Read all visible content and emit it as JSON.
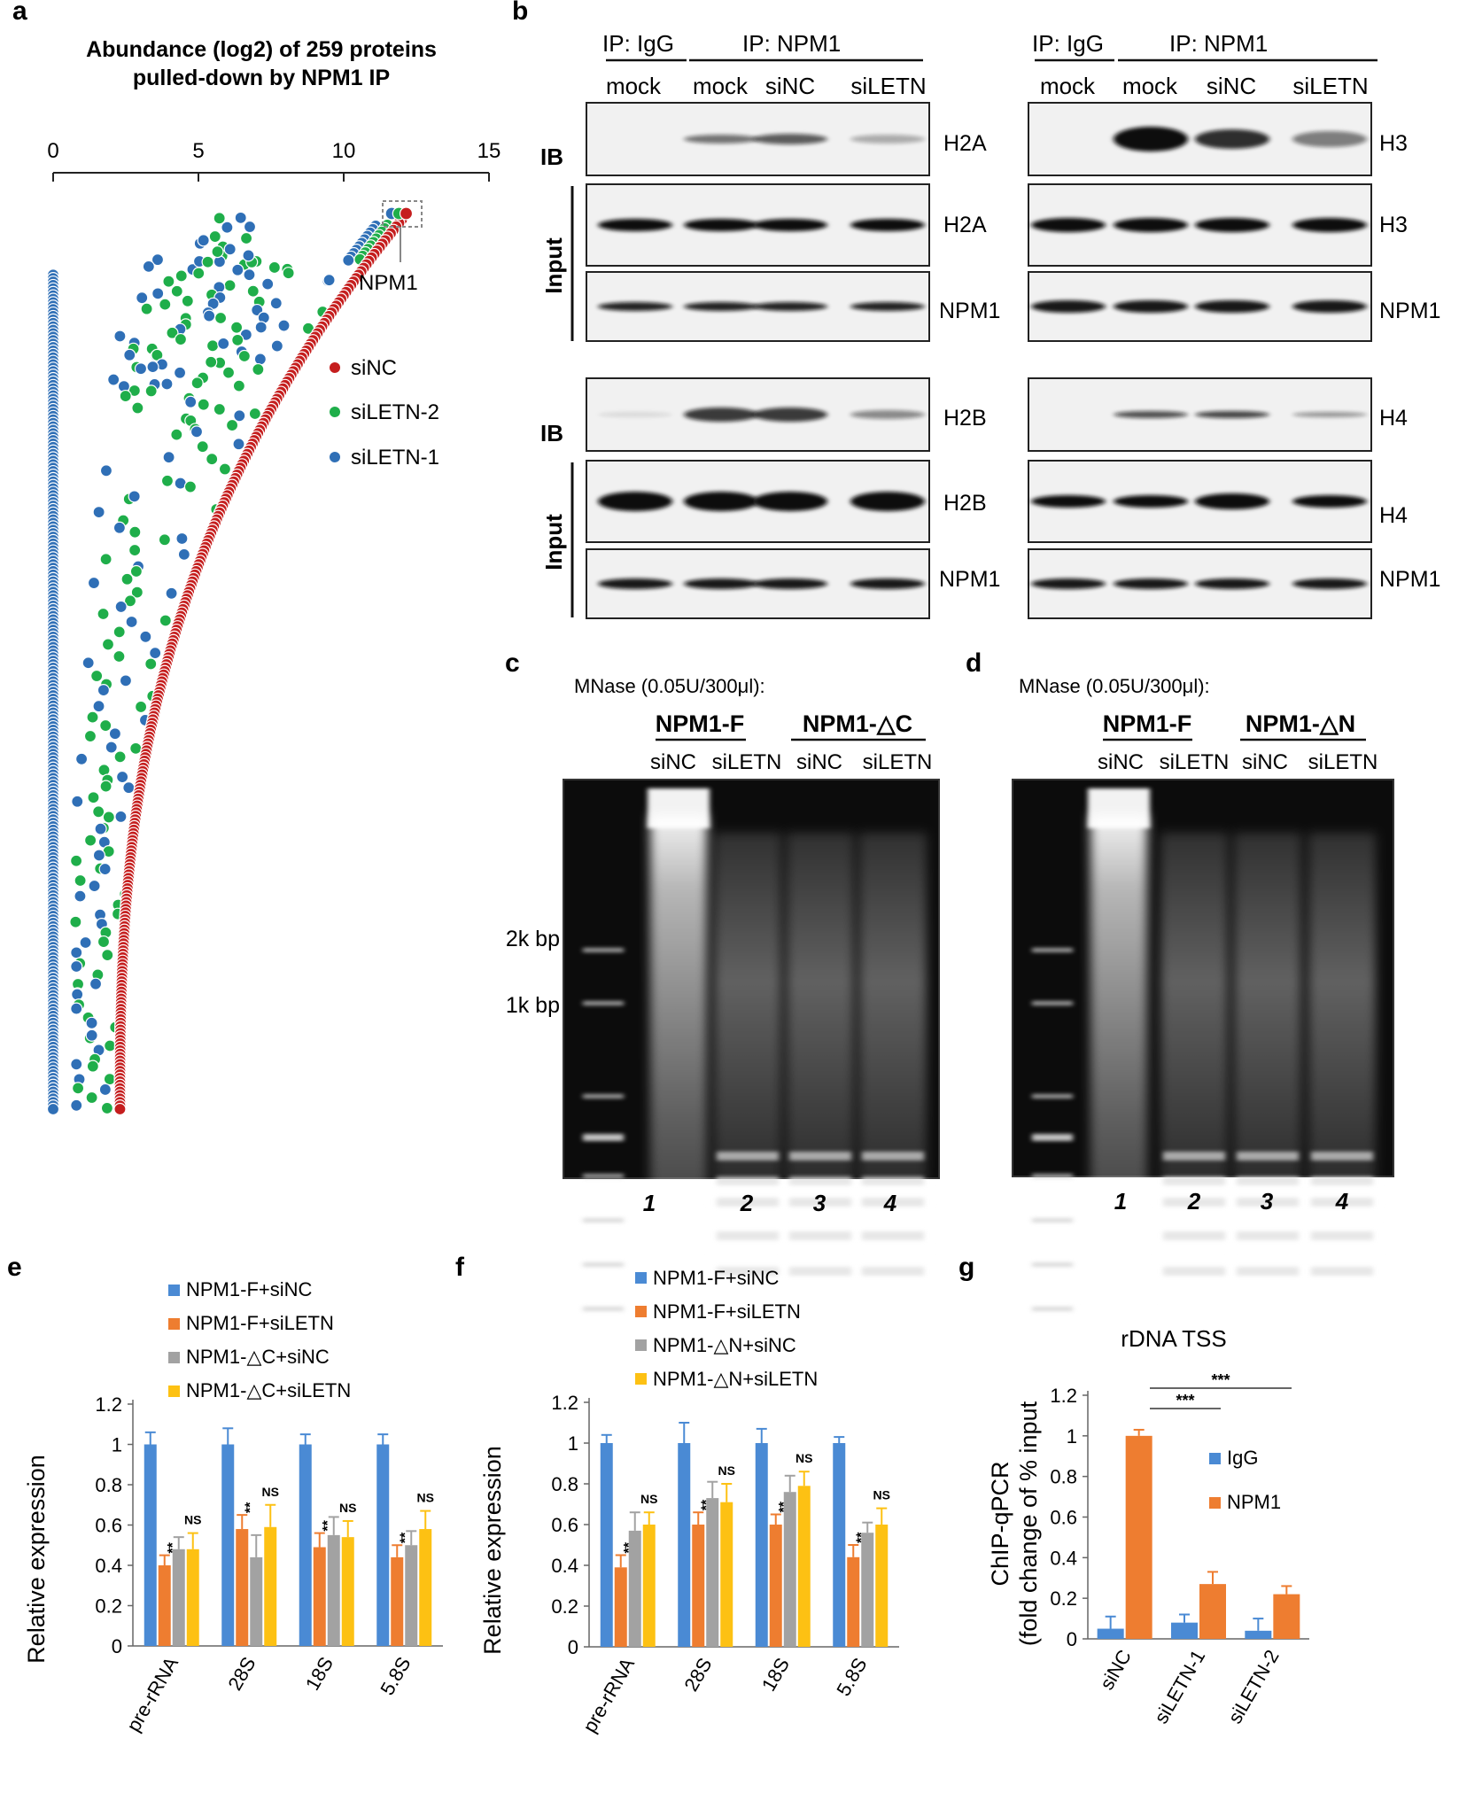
{
  "panels": {
    "a": "a",
    "b": "b",
    "c": "c",
    "d": "d",
    "e": "e",
    "f": "f",
    "g": "g"
  },
  "colors": {
    "blue": "#4a8ad4",
    "orange": "#ee7d30",
    "gray": "#a2a2a2",
    "yellow": "#fdc113",
    "red": "#c51e1e",
    "green": "#1fae4a",
    "scatterBlue": "#2f6fb6"
  },
  "chart_data": [
    {
      "panel": "a",
      "type": "scatter",
      "title_line1": "Abundance (log2) of 259 proteins",
      "title_line2": "pulled-down by NPM1 IP",
      "xlim": [
        0,
        15
      ],
      "xticks": [
        0,
        5,
        10,
        15
      ],
      "annotation": "NPM1",
      "legend": [
        {
          "name": "siNC",
          "color": "#c51e1e"
        },
        {
          "name": "siLETN-2",
          "color": "#1fae4a"
        },
        {
          "name": "siLETN-1",
          "color": "#2f6fb6"
        }
      ],
      "series": [
        {
          "name": "siNC",
          "description": "sorted abundance curve from ~2.3 (rank 259) to ~12.0 (rank 1)",
          "x_range": [
            2.3,
            12.0
          ]
        },
        {
          "name": "siLETN-2",
          "description": "scattered values between ~0 and ~12"
        },
        {
          "name": "siLETN-1",
          "description": "most values at 0, some scattered up to ~12"
        }
      ]
    },
    {
      "panel": "e",
      "type": "bar",
      "categories": [
        "pre-rRNA",
        "28S",
        "18S",
        "5.8S"
      ],
      "ylabel": "Relative expression",
      "ylim": [
        0,
        1.2
      ],
      "yticks": [
        "0",
        "0.2",
        "0.4",
        "0.6",
        "0.8",
        "1",
        "1.2"
      ],
      "series": [
        {
          "name": "NPM1-F+siNC",
          "values": [
            1.0,
            1.0,
            1.0,
            1.0
          ],
          "err": [
            0.06,
            0.08,
            0.05,
            0.05
          ]
        },
        {
          "name": "NPM1-F+siLETN",
          "values": [
            0.4,
            0.58,
            0.49,
            0.44
          ],
          "err": [
            0.05,
            0.07,
            0.07,
            0.06
          ]
        },
        {
          "name": "NPM1-△C+siNC",
          "values": [
            0.48,
            0.44,
            0.55,
            0.5
          ],
          "err": [
            0.06,
            0.11,
            0.09,
            0.07
          ]
        },
        {
          "name": "NPM1-△C+siLETN",
          "values": [
            0.48,
            0.59,
            0.54,
            0.58
          ],
          "err": [
            0.08,
            0.11,
            0.08,
            0.09
          ]
        }
      ],
      "sig": [
        {
          "label": "**",
          "over": "series2"
        },
        {
          "label": "NS",
          "over": "series4"
        }
      ]
    },
    {
      "panel": "f",
      "type": "bar",
      "categories": [
        "pre-rRNA",
        "28S",
        "18S",
        "5.8S"
      ],
      "ylabel": "Relative expression",
      "ylim": [
        0,
        1.2
      ],
      "yticks": [
        "0",
        "0.2",
        "0.4",
        "0.6",
        "0.8",
        "1",
        "1.2"
      ],
      "series": [
        {
          "name": "NPM1-F+siNC",
          "values": [
            1.0,
            1.0,
            1.0,
            1.0
          ],
          "err": [
            0.04,
            0.1,
            0.07,
            0.03
          ]
        },
        {
          "name": "NPM1-F+siLETN",
          "values": [
            0.39,
            0.6,
            0.6,
            0.44
          ],
          "err": [
            0.06,
            0.06,
            0.05,
            0.06
          ]
        },
        {
          "name": "NPM1-△N+siNC",
          "values": [
            0.57,
            0.73,
            0.76,
            0.56
          ],
          "err": [
            0.09,
            0.08,
            0.08,
            0.05
          ]
        },
        {
          "name": "NPM1-△N+siLETN",
          "values": [
            0.6,
            0.71,
            0.79,
            0.6
          ],
          "err": [
            0.06,
            0.09,
            0.07,
            0.08
          ]
        }
      ],
      "sig": [
        {
          "label": "**",
          "over": "series2"
        },
        {
          "label": "NS",
          "over": "series4"
        }
      ]
    },
    {
      "panel": "g",
      "type": "bar",
      "title": "rDNA TSS",
      "categories": [
        "siNC",
        "siLETN-1",
        "siLETN-2"
      ],
      "ylabel_line1": "ChIP-qPCR",
      "ylabel_line2": "(fold change of % input",
      "ylim": [
        0,
        1.2
      ],
      "yticks": [
        "0",
        "0.2",
        "0.4",
        "0.6",
        "0.8",
        "1",
        "1.2"
      ],
      "series": [
        {
          "name": "IgG",
          "values": [
            0.05,
            0.08,
            0.04
          ],
          "err": [
            0.06,
            0.04,
            0.06
          ]
        },
        {
          "name": "NPM1",
          "values": [
            1.0,
            0.27,
            0.22
          ],
          "err": [
            0.03,
            0.06,
            0.04
          ]
        }
      ],
      "sig": [
        "***",
        "***"
      ]
    }
  ],
  "blot": {
    "left": {
      "ip_igg": "IP: IgG",
      "ip_npm1": "IP: NPM1",
      "lanes": [
        "mock",
        "mock",
        "siNC",
        "siLETN"
      ],
      "ib": "IB",
      "input": "Input",
      "top_rows": [
        "H2A",
        "H2A",
        "NPM1"
      ],
      "bottom_rows": [
        "H2B",
        "H2B",
        "NPM1"
      ]
    },
    "right": {
      "ip_igg": "IP: IgG",
      "ip_npm1": "IP: NPM1",
      "lanes": [
        "mock",
        "mock",
        "siNC",
        "siLETN"
      ],
      "top_rows": [
        "H3",
        "H3",
        "NPM1"
      ],
      "bottom_rows": [
        "H4",
        "H4",
        "NPM1"
      ]
    }
  },
  "gels": {
    "c": {
      "mnase": "MNase (0.05U/300μl):",
      "groups": [
        "NPM1-F",
        "NPM1-△C"
      ],
      "lanes": [
        "siNC",
        "siLETN",
        "siNC",
        "siLETN"
      ],
      "numbers": [
        "1",
        "2",
        "3",
        "4"
      ],
      "markers": [
        "2k bp",
        "1k bp"
      ]
    },
    "d": {
      "mnase": "MNase (0.05U/300μl):",
      "groups": [
        "NPM1-F",
        "NPM1-△N"
      ],
      "lanes": [
        "siNC",
        "siLETN",
        "siNC",
        "siLETN"
      ],
      "numbers": [
        "1",
        "2",
        "3",
        "4"
      ]
    }
  }
}
